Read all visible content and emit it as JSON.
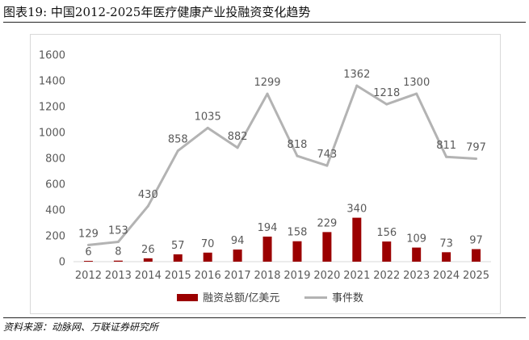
{
  "figure": {
    "title": "图表19:  中国2012-2025年医疗健康产业投融资变化趋势",
    "source": "资料来源：动脉网、万联证券研究所"
  },
  "chart_data": {
    "type": "bar",
    "categories": [
      "2012",
      "2013",
      "2014",
      "2015",
      "2016",
      "2017",
      "2018",
      "2019",
      "2020",
      "2021",
      "2022",
      "2023",
      "2024",
      "2025"
    ],
    "series": [
      {
        "name": "融资总额/亿美元",
        "type": "bar",
        "color": "#9b0000",
        "values": [
          6,
          8,
          26,
          57,
          70,
          94,
          194,
          158,
          229,
          340,
          156,
          109,
          73,
          97
        ]
      },
      {
        "name": "事件数",
        "type": "line",
        "color": "#b3b3b3",
        "values": [
          129,
          153,
          430,
          858,
          1035,
          882,
          1299,
          818,
          743,
          1362,
          1218,
          1300,
          811,
          797
        ]
      }
    ],
    "ylim": [
      0,
      1600
    ],
    "yticks": [
      0,
      200,
      400,
      600,
      800,
      1000,
      1200,
      1400,
      1600
    ],
    "grid": false,
    "legend": "bottom",
    "xlabel": "",
    "ylabel": ""
  }
}
